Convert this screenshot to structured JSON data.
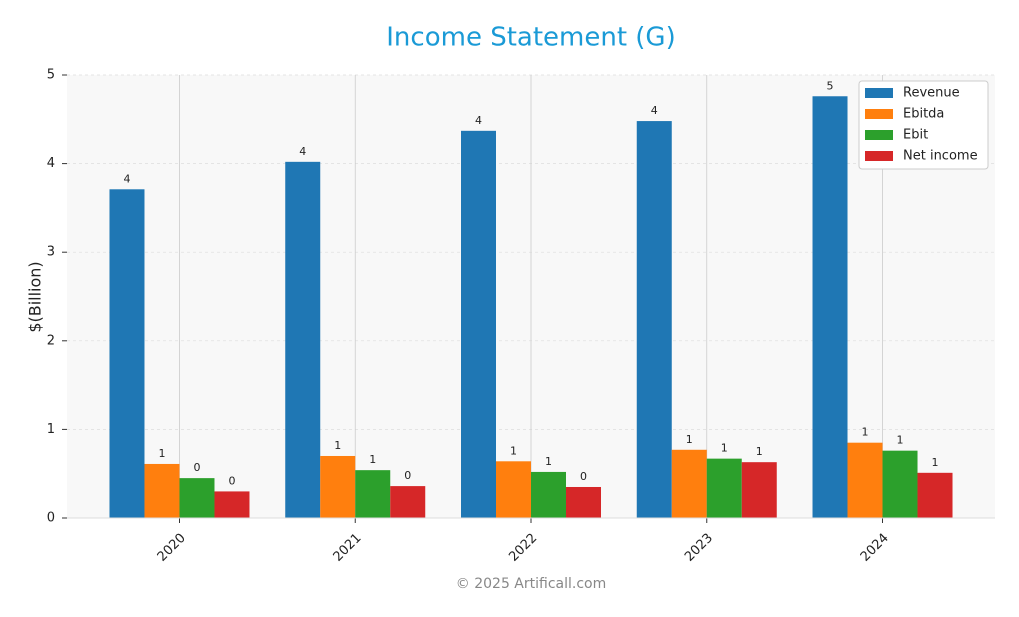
{
  "chart_data": {
    "type": "bar",
    "title": "Income Statement (G)",
    "ylabel": "$(Billion)",
    "footer": "© 2025 Artificall.com",
    "categories": [
      "2020",
      "2021",
      "2022",
      "2023",
      "2024"
    ],
    "series": [
      {
        "name": "Revenue",
        "color": "#1f77b4",
        "values": [
          3.71,
          4.02,
          4.37,
          4.48,
          4.76
        ],
        "value_labels": [
          "4",
          "4",
          "4",
          "4",
          "5"
        ]
      },
      {
        "name": "Ebitda",
        "color": "#ff7f0e",
        "values": [
          0.61,
          0.7,
          0.64,
          0.77,
          0.85
        ],
        "value_labels": [
          "1",
          "1",
          "1",
          "1",
          "1"
        ]
      },
      {
        "name": "Ebit",
        "color": "#2ca02c",
        "values": [
          0.45,
          0.54,
          0.52,
          0.67,
          0.76
        ],
        "value_labels": [
          "0",
          "1",
          "1",
          "1",
          "1"
        ]
      },
      {
        "name": "Net income",
        "color": "#d62728",
        "values": [
          0.3,
          0.36,
          0.35,
          0.63,
          0.51
        ],
        "value_labels": [
          "0",
          "0",
          "0",
          "1",
          "1"
        ]
      }
    ],
    "ylim": [
      0,
      5
    ],
    "yticks": [
      0,
      1,
      2,
      3,
      4,
      5
    ],
    "grid": true,
    "legend": "upper right"
  }
}
